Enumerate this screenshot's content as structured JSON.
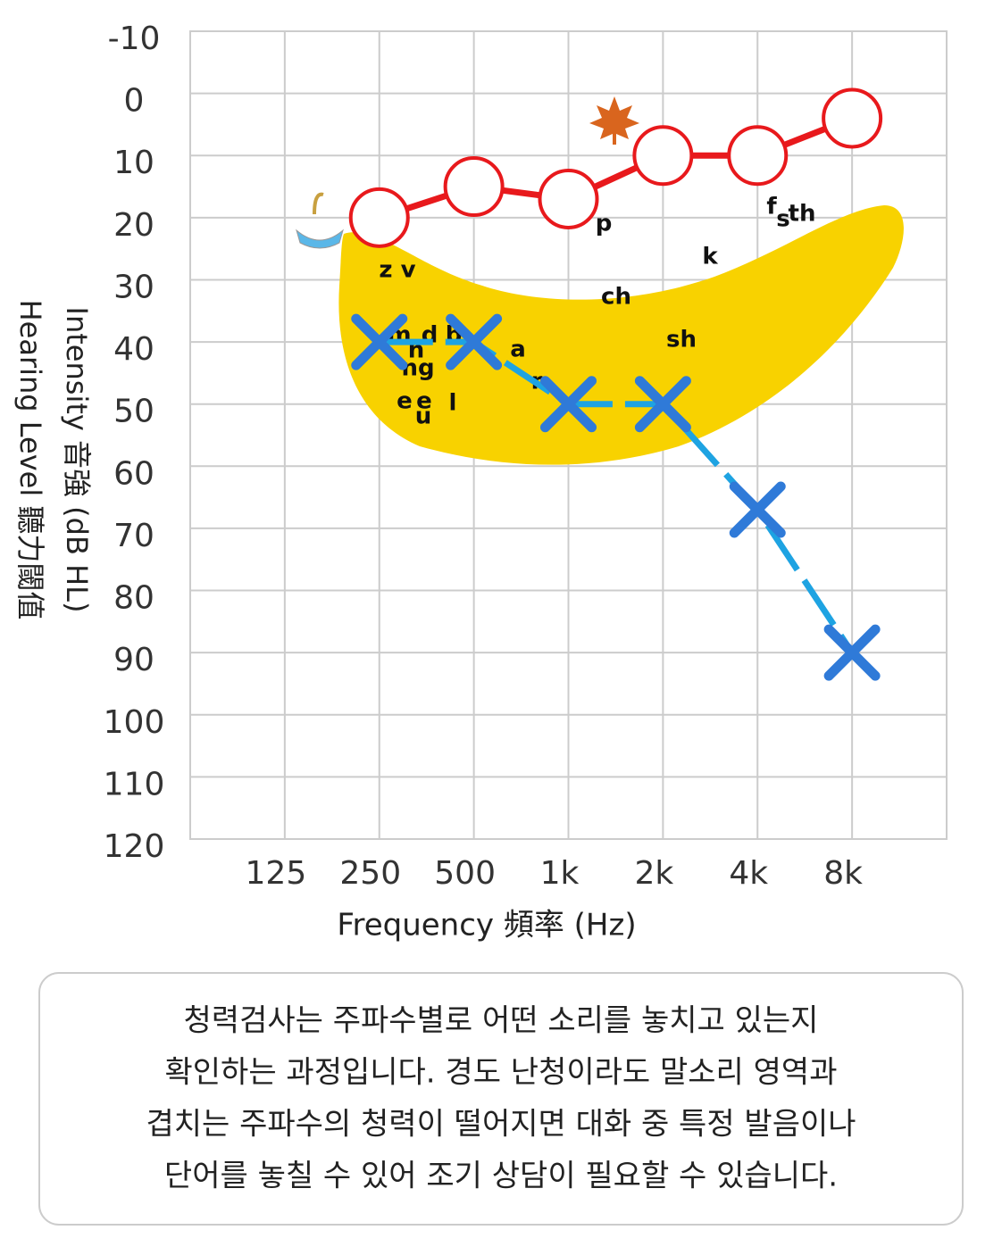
{
  "chart_data": {
    "type": "audiogram",
    "y_label_lines": [
      "Intensity 音強 (dB HL)",
      "Hearing Level 聽力閾值"
    ],
    "x_label": "Frequency 頻率 (Hz)",
    "categories": [
      "125",
      "250",
      "500",
      "1k",
      "2k",
      "4k",
      "8k"
    ],
    "ylim": [
      -10,
      120
    ],
    "yticks": [
      -10,
      0,
      10,
      20,
      30,
      40,
      50,
      60,
      70,
      80,
      90,
      100,
      110,
      120
    ],
    "reversed_y": true,
    "grid": true,
    "series": [
      {
        "marker": "circle",
        "color": "#e8191c",
        "values": [
          null,
          20,
          15,
          17,
          10,
          10,
          4
        ]
      },
      {
        "marker": "cross",
        "color": "#2f7ad8",
        "line_color": "#1ea3e2",
        "values": [
          null,
          40,
          40,
          50,
          50,
          67,
          90
        ]
      }
    ],
    "speech_sounds": [
      "z v",
      "m",
      "d",
      "b",
      "n",
      "ng",
      "e",
      "e",
      "u",
      "l",
      "a",
      "r",
      "p",
      "ch",
      "k",
      "sh",
      "f",
      "s",
      "th"
    ],
    "note_lines": [
      "청력검사는 주파수별로 어떤 소리를 놓치고 있는지",
      "확인하는 과정입니다. 경도 난청이라도 말소리 영역과",
      "겹치는 주파수의 청력이 떨어지면 대화 중 특정 발음이나",
      "단어를 놓칠 수 있어 조기 상담이 필요할 수 있습니다."
    ]
  }
}
